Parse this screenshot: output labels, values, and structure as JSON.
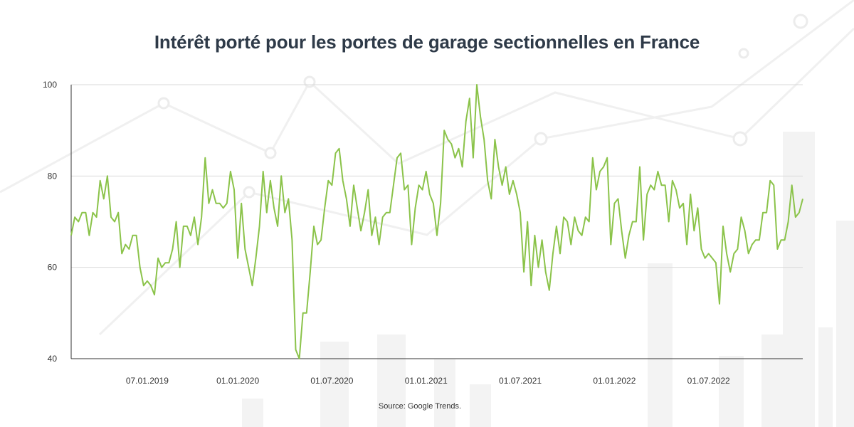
{
  "title": "Intérêt porté pour les portes de garage sectionnelles en France",
  "source": "Source: Google Trends.",
  "colors": {
    "line": "#8bc34a",
    "grid": "#d9d9d9",
    "axis": "#333333",
    "title": "#2e3a48",
    "decor": "#f1f1f1"
  },
  "chart_data": {
    "type": "line",
    "title": "Intérêt porté pour les portes de garage sectionnelles en France",
    "xlabel": "",
    "ylabel": "",
    "ylim": [
      40,
      100
    ],
    "yticks": [
      "40",
      "60",
      "80",
      "100"
    ],
    "xticks": [
      {
        "label": "07.01.2019",
        "index": 21
      },
      {
        "label": "01.01.2020",
        "index": 46
      },
      {
        "label": "01.07.2020",
        "index": 72
      },
      {
        "label": "01.01.2021",
        "index": 98
      },
      {
        "label": "01.07.2021",
        "index": 124
      },
      {
        "label": "01.01.2022",
        "index": 150
      },
      {
        "label": "01.07.2022",
        "index": 176
      }
    ],
    "grid": true,
    "legend": "none",
    "series": [
      {
        "values": [
          67,
          71,
          70,
          72,
          72,
          67,
          72,
          71,
          79,
          75,
          80,
          71,
          70,
          72,
          63,
          65,
          64,
          67,
          67,
          60,
          56,
          57,
          56,
          54,
          62,
          60,
          61,
          61,
          64,
          70,
          60,
          69,
          69,
          67,
          71,
          65,
          71,
          84,
          74,
          77,
          74,
          74,
          73,
          74,
          81,
          77,
          62,
          74,
          64,
          60,
          56,
          62,
          69,
          81,
          72,
          79,
          73,
          69,
          80,
          72,
          75,
          66,
          42,
          40,
          50,
          50,
          59,
          69,
          65,
          66,
          73,
          79,
          78,
          85,
          86,
          79,
          75,
          69,
          78,
          73,
          68,
          72,
          77,
          67,
          71,
          65,
          71,
          72,
          72,
          78,
          84,
          85,
          77,
          78,
          65,
          73,
          78,
          77,
          81,
          76,
          74,
          67,
          74,
          90,
          88,
          87,
          84,
          86,
          82,
          92,
          97,
          84,
          100,
          93,
          88,
          79,
          75,
          88,
          82,
          78,
          82,
          76,
          79,
          76,
          72,
          59,
          70,
          56,
          67,
          60,
          66,
          59,
          55,
          63,
          69,
          63,
          71,
          70,
          65,
          71,
          68,
          67,
          71,
          70,
          84,
          77,
          81,
          82,
          84,
          65,
          74,
          75,
          68,
          62,
          67,
          70,
          70,
          82,
          66,
          76,
          78,
          77,
          81,
          78,
          78,
          70,
          79,
          77,
          73,
          74,
          65,
          76,
          68,
          73,
          64,
          62,
          63,
          62,
          61,
          52,
          69,
          63,
          59,
          63,
          64,
          71,
          68,
          63,
          65,
          66,
          66,
          72,
          72,
          79,
          78,
          64,
          66,
          66,
          70,
          78,
          71,
          72,
          75
        ]
      }
    ]
  }
}
